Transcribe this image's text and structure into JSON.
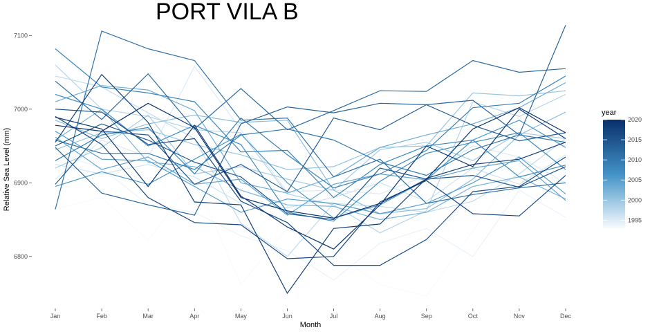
{
  "chart_data": {
    "type": "line",
    "title": "PORT VILA B",
    "xlabel": "Month",
    "ylabel": "Relative Sea Level (mm)",
    "categories": [
      "Jan",
      "Feb",
      "Mar",
      "Apr",
      "May",
      "Jun",
      "Jul",
      "Aug",
      "Sep",
      "Oct",
      "Nov",
      "Dec"
    ],
    "yticks": [
      6800,
      6900,
      7000,
      7100
    ],
    "ylim": [
      6735,
      7120
    ],
    "grid": false,
    "legend": {
      "title": "year",
      "position": "right",
      "type": "colorbar",
      "range": [
        1993,
        2020
      ],
      "ticks": [
        1995,
        2000,
        2005,
        2010,
        2015,
        2020
      ],
      "color_low": "#f7fbff",
      "color_high": "#08306b"
    },
    "series": [
      {
        "year": 1993,
        "values": [
          6865,
          6880,
          6822,
          6905,
          6762,
          6838,
          6805,
          6762,
          6746,
          6835,
          6922,
          6935
        ]
      },
      {
        "year": 1994,
        "values": [
          6940,
          6920,
          6870,
          6860,
          6828,
          6808,
          6768,
          6818,
          6838,
          6800,
          6890,
          6853
        ]
      },
      {
        "year": 1995,
        "values": [
          6905,
          6958,
          6935,
          7058,
          6972,
          6888,
          6890,
          6885,
          6910,
          6950,
          6935,
          6900
        ]
      },
      {
        "year": 1996,
        "values": [
          6925,
          6912,
          6925,
          6908,
          6872,
          6866,
          6880,
          6900,
          6875,
          6920,
          6898,
          6938
        ]
      },
      {
        "year": 1997,
        "values": [
          7045,
          7030,
          6995,
          6960,
          6845,
          6800,
          6872,
          6868,
          6860,
          6875,
          6912,
          6960
        ]
      },
      {
        "year": 1998,
        "values": [
          7060,
          7000,
          6990,
          6972,
          6968,
          6885,
          6870,
          6832,
          6862,
          7010,
          6990,
          7020
        ]
      },
      {
        "year": 1999,
        "values": [
          6920,
          6948,
          6992,
          6912,
          6922,
          6905,
          6890,
          6945,
          6955,
          6930,
          6968,
          6960
        ]
      },
      {
        "year": 2000,
        "values": [
          6945,
          6968,
          6972,
          6952,
          6938,
          6918,
          6922,
          6948,
          6950,
          7022,
          7018,
          7025
        ]
      },
      {
        "year": 2001,
        "values": [
          6985,
          6960,
          6980,
          6992,
          6982,
          6985,
          6890,
          6858,
          6865,
          6905,
          6965,
          6996
        ]
      },
      {
        "year": 2002,
        "values": [
          6958,
          7000,
          6928,
          6922,
          6890,
          6870,
          6868,
          6850,
          6860,
          6895,
          6908,
          6878
        ]
      },
      {
        "year": 2003,
        "values": [
          7010,
          7032,
          7026,
          6998,
          6900,
          6886,
          6908,
          6948,
          6965,
          6980,
          7002,
          7036
        ]
      },
      {
        "year": 2004,
        "values": [
          6962,
          6918,
          6935,
          6898,
          6905,
          6856,
          6898,
          6912,
          6904,
          6920,
          6930,
          6876
        ]
      },
      {
        "year": 2005,
        "values": [
          6970,
          6932,
          6930,
          6895,
          6860,
          6878,
          6872,
          6858,
          6872,
          6900,
          6935,
          6885
        ]
      },
      {
        "year": 2006,
        "values": [
          6895,
          6915,
          6898,
          6932,
          6966,
          6900,
          6852,
          6870,
          6904,
          6958,
          6985,
          6948
        ]
      },
      {
        "year": 2007,
        "values": [
          7020,
          7000,
          6950,
          6978,
          6952,
          6860,
          6848,
          6902,
          6940,
          6955,
          6968,
          6918
        ]
      },
      {
        "year": 2008,
        "values": [
          7082,
          7030,
          7022,
          7010,
          6942,
          6944,
          6880,
          6925,
          6950,
          6958,
          6908,
          6924
        ]
      },
      {
        "year": 2009,
        "values": [
          6930,
          6965,
          6975,
          6912,
          6988,
          6938,
          6893,
          6912,
          6944,
          7002,
          7008,
          7045
        ]
      },
      {
        "year": 2010,
        "values": [
          6958,
          6940,
          6940,
          6918,
          6965,
          6973,
          6958,
          6928,
          6910,
          6945,
          6965,
          6955
        ]
      },
      {
        "year": 2011,
        "values": [
          6864,
          7106,
          7082,
          7066,
          6985,
          6988,
          6908,
          6932,
          6872,
          6884,
          6893,
          6900
        ]
      },
      {
        "year": 2012,
        "values": [
          7038,
          6986,
          7048,
          6973,
          7028,
          6972,
          6998,
          7025,
          7024,
          7066,
          7050,
          7055
        ]
      },
      {
        "year": 2013,
        "values": [
          6948,
          6886,
          6870,
          6856,
          6980,
          7003,
          6995,
          7008,
          7006,
          7012,
          6965,
          7114
        ]
      },
      {
        "year": 2014,
        "values": [
          6898,
          6970,
          6965,
          6898,
          6925,
          6888,
          6988,
          6972,
          7006,
          6978,
          6957,
          6968
        ]
      },
      {
        "year": 2015,
        "values": [
          6950,
          6980,
          6958,
          6928,
          6908,
          6858,
          6850,
          6920,
          6905,
          6910,
          6894,
          6922
        ]
      },
      {
        "year": 2016,
        "values": [
          7000,
          6996,
          6952,
          6960,
          6875,
          6846,
          6788,
          6788,
          6823,
          6888,
          6895,
          6935
        ]
      },
      {
        "year": 2017,
        "values": [
          6990,
          6952,
          6880,
          6846,
          6843,
          6797,
          6800,
          6874,
          6903,
          6858,
          6855,
          6910
        ]
      },
      {
        "year": 2018,
        "values": [
          6955,
          7047,
          6982,
          6874,
          6870,
          6750,
          6838,
          6844,
          6906,
          6925,
          6932,
          6955
        ]
      },
      {
        "year": 2019,
        "values": [
          6989,
          6973,
          6895,
          6978,
          6882,
          6840,
          6810,
          6870,
          6950,
          6922,
          7000,
          6960
        ]
      },
      {
        "year": 2020,
        "values": [
          6978,
          6970,
          7008,
          6975,
          6880,
          6862,
          6852,
          6872,
          6905,
          6973,
          7002,
          6968
        ]
      }
    ]
  }
}
